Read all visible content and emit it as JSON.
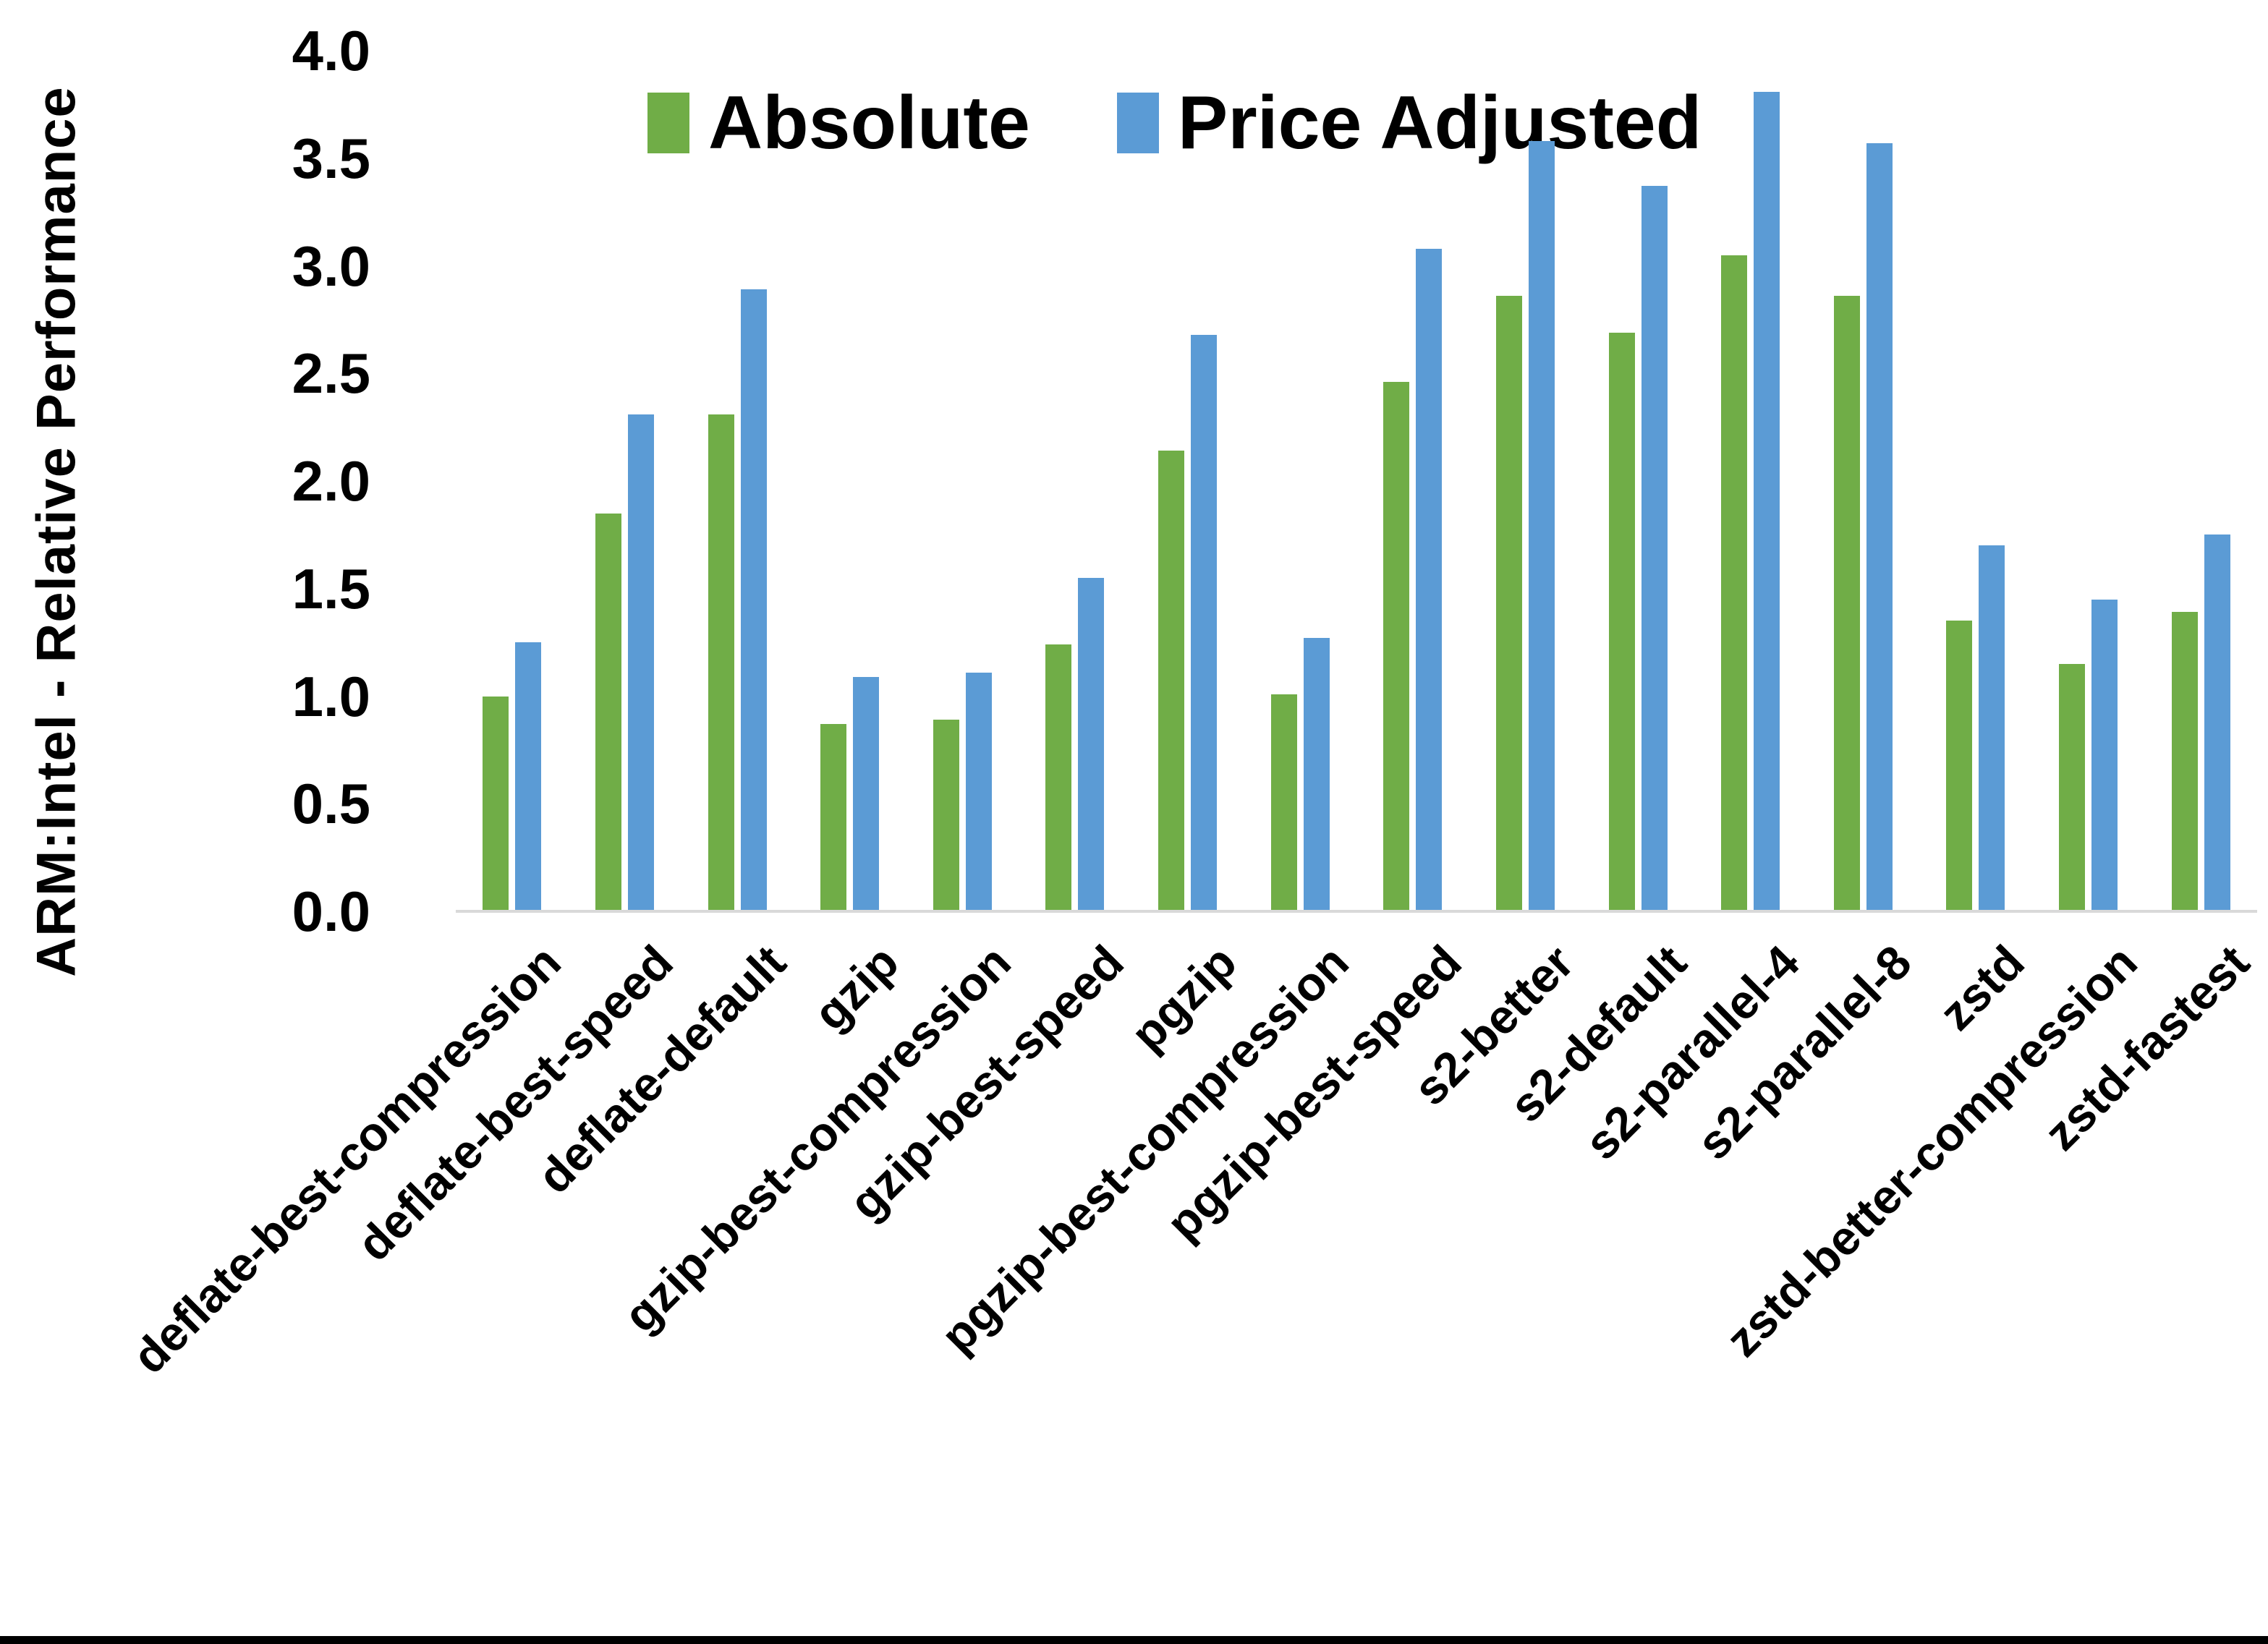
{
  "chart_data": {
    "type": "bar",
    "title": "",
    "ylabel": "ARM:Intel - Relative Performance",
    "xlabel": "",
    "ylim": [
      0.0,
      4.0
    ],
    "yticks": [
      "0.0",
      "0.5",
      "1.0",
      "1.5",
      "2.0",
      "2.5",
      "3.0",
      "3.5",
      "4.0"
    ],
    "grid": false,
    "legend_position": "top-center",
    "categories": [
      "deflate-best-compression",
      "deflate-best-speed",
      "deflate-default",
      "gzip",
      "gzip-best-compression",
      "gzip-best-speed",
      "pgzip",
      "pgzip-best-compression",
      "pgzip-best-speed",
      "s2-better",
      "s2-default",
      "s2-parallel-4",
      "s2-parallel-8",
      "zstd",
      "zstd-better-compression",
      "zstd-fastest"
    ],
    "series": [
      {
        "name": "Absolute",
        "color": "#70AD47",
        "values": [
          1.0,
          1.85,
          2.31,
          0.87,
          0.89,
          1.24,
          2.14,
          1.01,
          2.46,
          2.86,
          2.69,
          3.05,
          2.86,
          1.35,
          1.15,
          1.39
        ]
      },
      {
        "name": "Price Adjusted",
        "color": "#5B9BD5",
        "values": [
          1.25,
          2.31,
          2.89,
          1.09,
          1.11,
          1.55,
          2.68,
          1.27,
          3.08,
          3.58,
          3.37,
          3.81,
          3.57,
          1.7,
          1.45,
          1.75
        ]
      }
    ],
    "axis_line_color": "#D9D9D9",
    "text_color": "#000000",
    "background_color": "#FFFFFF",
    "bottom_edge_color": "#000000"
  }
}
